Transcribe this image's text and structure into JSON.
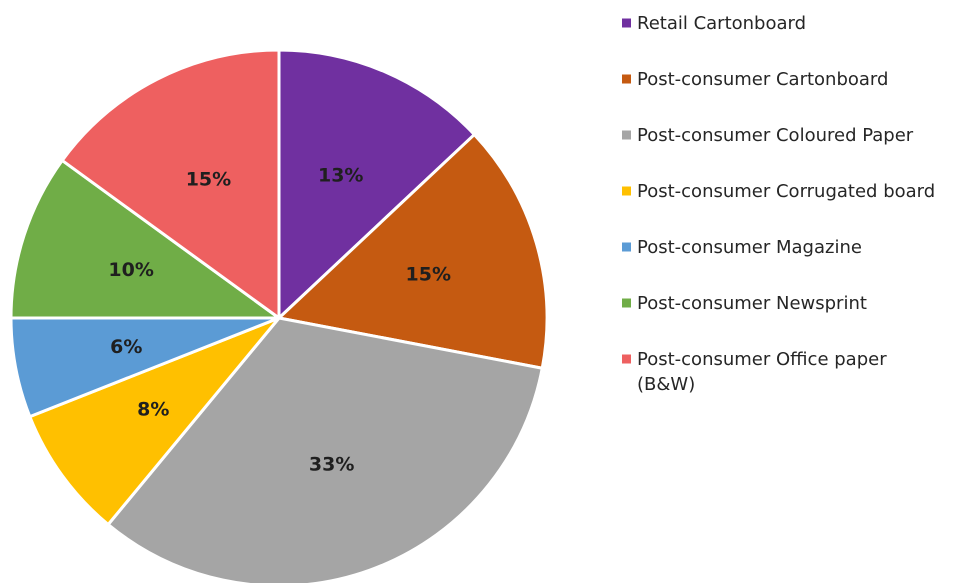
{
  "chart_data": {
    "type": "pie",
    "start_angle_deg": 0,
    "direction": "clockwise",
    "legend_position": "right",
    "slices": [
      {
        "name": "Retail Cartonboard",
        "value": 13,
        "label": "13%",
        "color": "#7030A0"
      },
      {
        "name": "Post-consumer Cartonboard",
        "value": 15,
        "label": "15%",
        "color": "#C55A11"
      },
      {
        "name": "Post-consumer Coloured Paper",
        "value": 33,
        "label": "33%",
        "color": "#A5A5A5"
      },
      {
        "name": "Post-consumer Corrugated board",
        "value": 8,
        "label": "8%",
        "color": "#FFC000"
      },
      {
        "name": "Post-consumer Magazine",
        "value": 6,
        "label": "6%",
        "color": "#5B9BD5"
      },
      {
        "name": "Post-consumer Newsprint",
        "value": 10,
        "label": "10%",
        "color": "#70AD47"
      },
      {
        "name": "Post-consumer Office paper (B&W)",
        "value": 15,
        "label": "15%",
        "color": "#EE6060"
      }
    ]
  }
}
